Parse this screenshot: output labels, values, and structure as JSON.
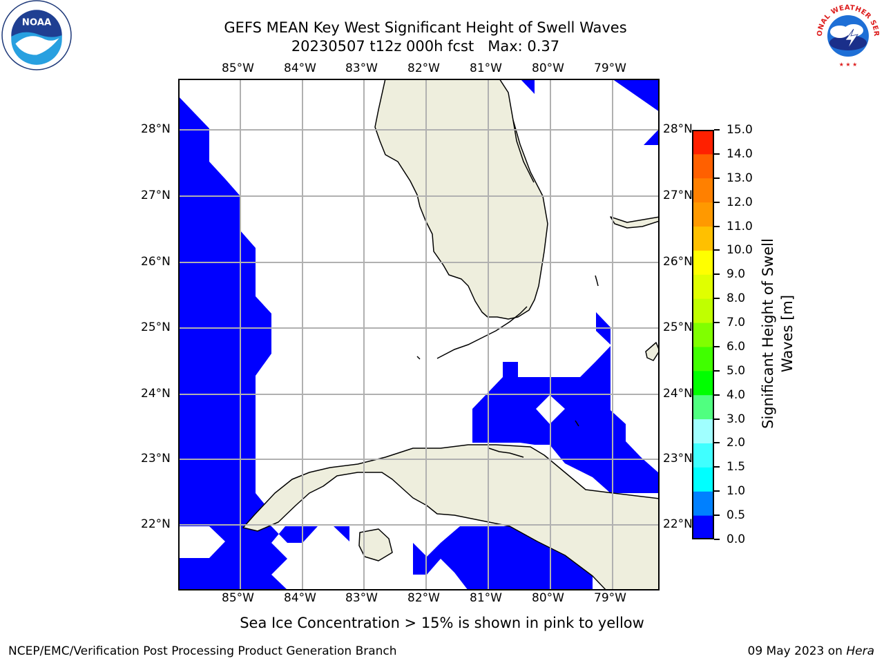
{
  "header": {
    "title_line1": "GEFS MEAN Key West Significant Height of Swell Waves",
    "title_line2": "20230507 t12z 000h fcst   Max: 0.37"
  },
  "logos": {
    "left": {
      "icon": "noaa-logo",
      "text": "NOAA"
    },
    "right": {
      "icon": "national-weather-service-logo",
      "text": "NATIONAL WEATHER SERVICE"
    }
  },
  "map": {
    "region": "Florida Straits / Key West",
    "lon_labels": [
      "85°W",
      "84°W",
      "83°W",
      "82°W",
      "81°W",
      "80°W",
      "79°W"
    ],
    "lat_labels": [
      "28°N",
      "27°N",
      "26°N",
      "25°N",
      "24°N",
      "23°N",
      "22°N"
    ],
    "colors": {
      "land": "#eeeedd",
      "ocean_no_data": "#ffffff",
      "swell_lowest_bin": "#0000ff",
      "gridline": "#b0b0b0",
      "coastline": "#000000"
    }
  },
  "colorbar": {
    "label": "Significant Height of Swell Waves [m]",
    "ticks": [
      "15.0",
      "14.0",
      "13.0",
      "12.0",
      "11.0",
      "10.0",
      "9.0",
      "8.0",
      "7.0",
      "6.0",
      "5.0",
      "4.0",
      "3.0",
      "2.0",
      "1.5",
      "1.0",
      "0.5",
      "0.0"
    ],
    "bins": [
      {
        "from": 0.0,
        "to": 0.5,
        "color": "#0000ff"
      },
      {
        "from": 0.5,
        "to": 1.0,
        "color": "#0080ff"
      },
      {
        "from": 1.0,
        "to": 1.5,
        "color": "#00ffff"
      },
      {
        "from": 1.5,
        "to": 2.0,
        "color": "#40ffff"
      },
      {
        "from": 2.0,
        "to": 3.0,
        "color": "#a0ffff"
      },
      {
        "from": 3.0,
        "to": 4.0,
        "color": "#50ff80"
      },
      {
        "from": 4.0,
        "to": 5.0,
        "color": "#00ff00"
      },
      {
        "from": 5.0,
        "to": 6.0,
        "color": "#40ff00"
      },
      {
        "from": 6.0,
        "to": 7.0,
        "color": "#80ff00"
      },
      {
        "from": 7.0,
        "to": 8.0,
        "color": "#c0ff00"
      },
      {
        "from": 8.0,
        "to": 9.0,
        "color": "#e0ff00"
      },
      {
        "from": 9.0,
        "to": 10.0,
        "color": "#ffff00"
      },
      {
        "from": 10.0,
        "to": 11.0,
        "color": "#ffc000"
      },
      {
        "from": 11.0,
        "to": 12.0,
        "color": "#ff9900"
      },
      {
        "from": 12.0,
        "to": 13.0,
        "color": "#ff8000"
      },
      {
        "from": 13.0,
        "to": 14.0,
        "color": "#ff6000"
      },
      {
        "from": 14.0,
        "to": 15.0,
        "color": "#ff2000"
      }
    ]
  },
  "footer": {
    "ice_note": "Sea Ice Concentration > 15% is shown in pink to yellow",
    "credit_left": "NCEP/EMC/Verification Post Processing Product Generation Branch",
    "credit_right_date": "09 May 2023 on",
    "credit_right_host": "Hera"
  }
}
